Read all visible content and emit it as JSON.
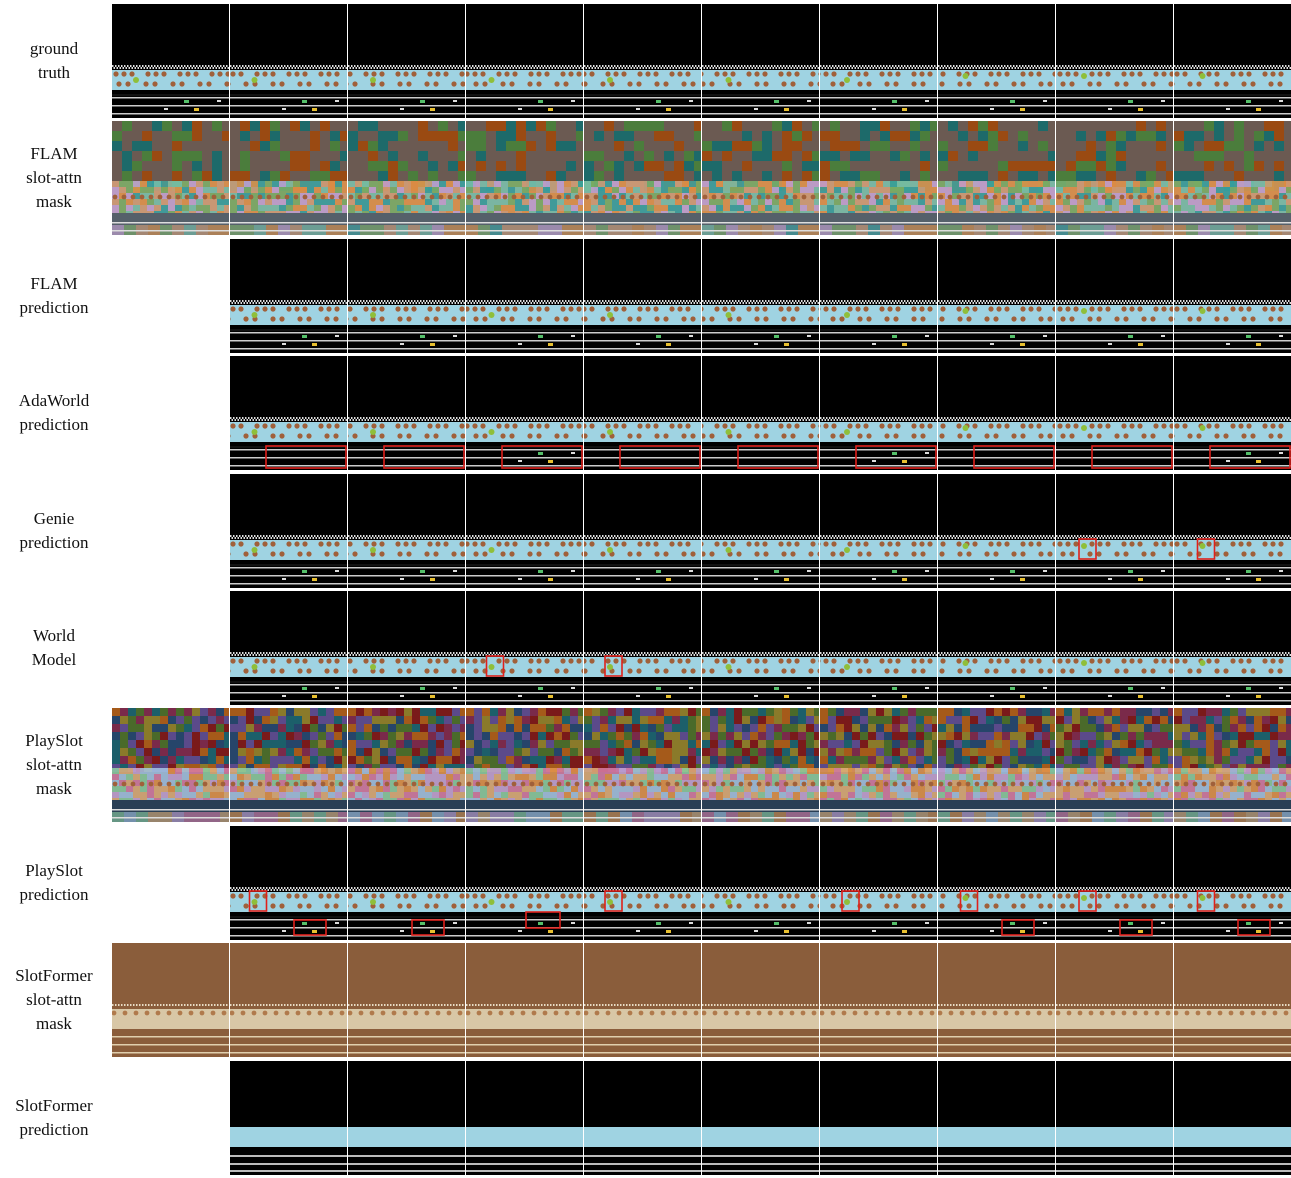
{
  "rows": [
    {
      "key": "gt",
      "label_lines": [
        "ground",
        "truth"
      ],
      "kind": "frame",
      "has_first_col": true,
      "highlights": []
    },
    {
      "key": "flam_mask",
      "label_lines": [
        "FLAM",
        "slot-attn",
        "mask"
      ],
      "kind": "mask_flam",
      "has_first_col": true,
      "highlights": []
    },
    {
      "key": "flam_pred",
      "label_lines": [
        "FLAM",
        "prediction"
      ],
      "kind": "frame",
      "has_first_col": false,
      "highlights": []
    },
    {
      "key": "adaworld_pred",
      "label_lines": [
        "AdaWorld",
        "prediction"
      ],
      "kind": "frame_ada",
      "has_first_col": false,
      "highlights": [
        {
          "col": 1,
          "region": "lower"
        },
        {
          "col": 2,
          "region": "lower"
        },
        {
          "col": 3,
          "region": "lower"
        },
        {
          "col": 4,
          "region": "lower"
        },
        {
          "col": 5,
          "region": "lower"
        },
        {
          "col": 6,
          "region": "lower"
        },
        {
          "col": 7,
          "region": "lower"
        },
        {
          "col": 8,
          "region": "lower"
        },
        {
          "col": 9,
          "region": "lower"
        }
      ]
    },
    {
      "key": "genie_pred",
      "label_lines": [
        "Genie",
        "prediction"
      ],
      "kind": "frame",
      "has_first_col": false,
      "highlights": [
        {
          "col": 8,
          "region": "frog"
        },
        {
          "col": 9,
          "region": "frog"
        }
      ]
    },
    {
      "key": "world_model",
      "label_lines": [
        "World",
        "Model"
      ],
      "kind": "frame",
      "has_first_col": false,
      "highlights": [
        {
          "col": 3,
          "region": "frog"
        },
        {
          "col": 4,
          "region": "frog"
        }
      ]
    },
    {
      "key": "playslot_mask",
      "label_lines": [
        "PlaySlot",
        "slot-attn",
        "mask"
      ],
      "kind": "mask_playslot",
      "has_first_col": true,
      "highlights": []
    },
    {
      "key": "playslot_pred",
      "label_lines": [
        "PlaySlot",
        "prediction"
      ],
      "kind": "frame",
      "has_first_col": false,
      "highlights": [
        {
          "col": 1,
          "region": "frog"
        },
        {
          "col": 1,
          "region": "car"
        },
        {
          "col": 2,
          "region": "car"
        },
        {
          "col": 3,
          "region": "car2"
        },
        {
          "col": 4,
          "region": "frog"
        },
        {
          "col": 6,
          "region": "frog"
        },
        {
          "col": 7,
          "region": "frog"
        },
        {
          "col": 7,
          "region": "car"
        },
        {
          "col": 8,
          "region": "frog"
        },
        {
          "col": 8,
          "region": "car"
        },
        {
          "col": 9,
          "region": "frog"
        },
        {
          "col": 9,
          "region": "car"
        }
      ]
    },
    {
      "key": "slotformer_mask",
      "label_lines": [
        "SlotFormer",
        "slot-attn",
        "mask"
      ],
      "kind": "mask_slotformer",
      "has_first_col": true,
      "highlights": []
    },
    {
      "key": "slotformer_pred",
      "label_lines": [
        "SlotFormer",
        "prediction"
      ],
      "kind": "frame_empty",
      "has_first_col": false,
      "highlights": []
    }
  ],
  "colors": {
    "background": "#000000",
    "water": "#9fd3e2",
    "log": "#a0603a",
    "frog": "#8fbf3a",
    "highlight": "#e0201b",
    "slotformer_mask_bg": "#8a5d3b",
    "slotformer_mask_band": "#d8c7a6",
    "flam_mask_bg": "#6b5a52",
    "grid_line": "#ffffff"
  }
}
